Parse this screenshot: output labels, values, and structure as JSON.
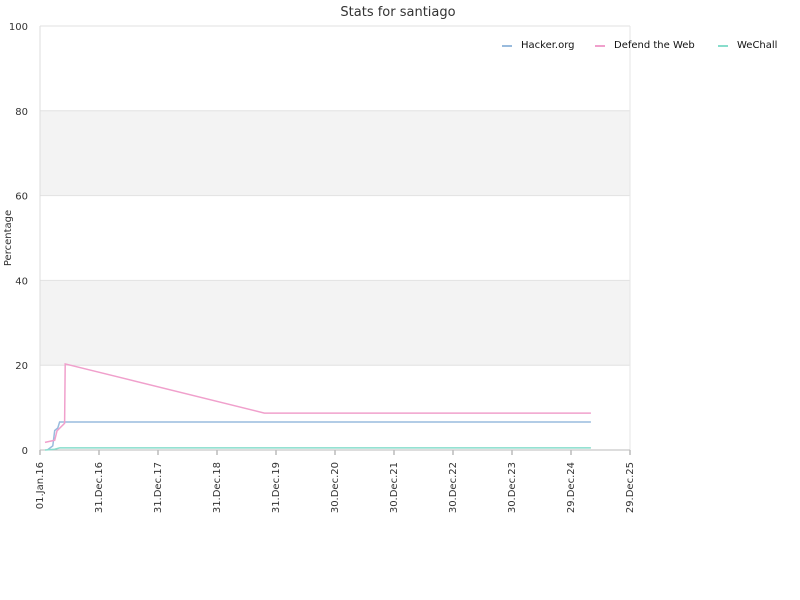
{
  "chart_data": {
    "type": "line",
    "title": "Stats for santiago",
    "xlabel": "",
    "ylabel": "Percentage",
    "ylim": [
      0,
      100
    ],
    "xlim": [
      "2016-01-01",
      "2025-12-29"
    ],
    "y_ticks": [
      0,
      20,
      40,
      60,
      80,
      100
    ],
    "x_ticks": [
      "01.Jan.16",
      "31.Dec.16",
      "31.Dec.17",
      "31.Dec.18",
      "31.Dec.19",
      "30.Dec.20",
      "30.Dec.21",
      "30.Dec.22",
      "30.Dec.23",
      "29.Dec.24",
      "29.Dec.25"
    ],
    "x_tick_dates": [
      "2016-01-01",
      "2016-12-31",
      "2017-12-31",
      "2018-12-31",
      "2019-12-31",
      "2020-12-30",
      "2021-12-30",
      "2022-12-30",
      "2023-12-30",
      "2024-12-29",
      "2025-12-29"
    ],
    "grid": true,
    "alternating_bands": true,
    "legend_position": "top-right",
    "series": [
      {
        "name": "Hacker.org",
        "color": "#99bbdd",
        "points": [
          [
            "2016-02-15",
            0
          ],
          [
            "2016-03-20",
            1
          ],
          [
            "2016-04-01",
            4.6
          ],
          [
            "2016-04-20",
            5.2
          ],
          [
            "2016-05-01",
            6.6
          ],
          [
            "2025-05-01",
            6.6
          ]
        ]
      },
      {
        "name": "Defend the Web",
        "color": "#f0a0cc",
        "points": [
          [
            "2016-02-01",
            1.8
          ],
          [
            "2016-04-01",
            2.3
          ],
          [
            "2016-04-15",
            4.5
          ],
          [
            "2016-06-01",
            6.3
          ],
          [
            "2016-06-05",
            20.3
          ],
          [
            "2019-10-20",
            8.7
          ],
          [
            "2025-05-01",
            8.7
          ]
        ]
      },
      {
        "name": "WeChall",
        "color": "#88ddcc",
        "points": [
          [
            "2016-02-01",
            0
          ],
          [
            "2016-04-01",
            0.2
          ],
          [
            "2016-05-01",
            0.5
          ],
          [
            "2025-05-01",
            0.5
          ]
        ]
      }
    ]
  }
}
